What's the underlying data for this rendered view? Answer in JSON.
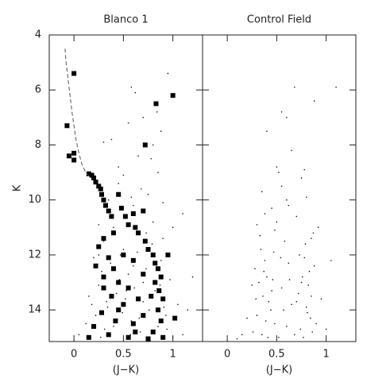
{
  "chart_data": [
    {
      "type": "scatter",
      "title": "Blanco 1",
      "xlabel": "(J−K)",
      "ylabel": "K",
      "xlim": [
        -0.25,
        1.3
      ],
      "ylim": [
        4,
        15.15
      ],
      "y_inverted": true,
      "show_ytick_labels": true,
      "xticks": [
        0,
        0.5,
        1
      ],
      "yticks": [
        4,
        6,
        8,
        10,
        12,
        14
      ],
      "series": [
        {
          "marker": "dot",
          "color": "#111",
          "x": [
            0.05,
            0.12,
            0.18,
            0.22,
            0.25,
            0.28,
            0.31,
            0.34,
            0.37,
            0.4,
            0.43,
            0.46,
            0.49,
            0.52,
            0.55,
            0.58,
            0.61,
            0.64,
            0.67,
            0.7,
            0.73,
            0.76,
            0.79,
            0.82,
            0.85,
            0.88,
            0.91,
            0.94,
            0.97,
            1.0,
            0.2,
            0.3,
            0.4,
            0.5,
            0.6,
            0.7,
            0.8,
            0.9,
            0.15,
            0.27,
            0.36,
            0.47,
            0.57,
            0.66,
            0.77,
            0.87,
            0.33,
            0.53,
            0.73,
            0.93,
            1.05,
            1.1,
            0.6,
            0.45,
            0.25,
            0.68,
            0.78,
            0.38,
            0.58,
            0.84,
            0.55,
            0.85,
            0.65,
            1.1,
            0.45,
            0.75,
            0.95,
            0.3,
            1.0,
            0.9,
            0.62,
            0.5,
            0.8,
            0.7,
            0.35,
            1.2,
            0.25,
            0.58,
            0.88,
            1.15
          ],
          "values": [
            14.9,
            14.5,
            13.8,
            14.2,
            13.1,
            12.6,
            14.7,
            13.9,
            12.3,
            14.6,
            13.4,
            12.9,
            14.1,
            13.6,
            12.7,
            14.4,
            13.2,
            11.9,
            14.8,
            13.7,
            12.5,
            14.0,
            11.6,
            13.3,
            14.6,
            12.2,
            13.9,
            14.7,
            12.9,
            15.0,
            12.1,
            11.5,
            11.0,
            11.8,
            12.4,
            13.0,
            10.8,
            11.4,
            13.5,
            15.0,
            10.6,
            12.0,
            14.9,
            14.3,
            15.1,
            13.1,
            13.7,
            13.3,
            11.2,
            14.2,
            13.8,
            14.9,
            10.2,
            9.4,
            10.9,
            9.6,
            8.5,
            7.8,
            5.9,
            6.8,
            7.2,
            9.0,
            8.4,
            10.5,
            8.8,
            9.8,
            5.4,
            7.9,
            11.0,
            10.1,
            6.1,
            9.1,
            8.0,
            7.0,
            10.0,
            12.8,
            12.0,
            9.9,
            7.5,
            14.0
          ]
        },
        {
          "marker": "square",
          "color": "#000",
          "x": [
            0.0,
            0.72,
            0.83,
            1.0,
            -0.07,
            -0.05,
            0.0,
            0.0,
            0.15,
            0.18,
            0.2,
            0.22,
            0.25,
            0.27,
            0.28,
            0.3,
            0.32,
            0.35,
            0.38,
            0.45,
            0.48,
            0.52,
            0.55,
            0.6,
            0.62,
            0.65,
            0.7,
            0.72,
            0.75,
            0.8,
            0.82,
            0.85,
            0.88,
            0.82,
            0.86,
            0.9,
            0.85,
            0.88,
            0.8,
            0.9,
            0.4,
            0.3,
            0.25,
            0.35,
            0.4,
            0.3,
            0.45,
            0.55,
            0.38,
            0.5,
            0.28,
            0.42,
            0.6,
            0.7,
            0.65,
            0.2,
            0.35,
            0.55,
            0.75,
            0.15,
            1.02,
            0.95,
            0.6,
            0.7,
            0.5,
            0.22,
            0.3,
            0.45,
            0.62,
            0.78
          ],
          "values": [
            5.4,
            8.0,
            6.5,
            6.2,
            7.3,
            8.4,
            8.3,
            8.55,
            9.05,
            9.1,
            9.2,
            9.35,
            9.5,
            9.6,
            9.8,
            10.0,
            10.2,
            10.4,
            10.6,
            9.8,
            10.3,
            10.6,
            10.9,
            10.5,
            11.0,
            11.2,
            10.4,
            11.5,
            11.8,
            12.0,
            12.3,
            12.5,
            12.8,
            13.0,
            13.3,
            13.6,
            14.0,
            14.4,
            14.8,
            15.0,
            11.2,
            11.4,
            11.7,
            12.1,
            12.5,
            12.8,
            13.0,
            13.2,
            13.5,
            13.8,
            14.1,
            14.4,
            14.5,
            14.2,
            13.6,
            14.6,
            14.9,
            15.0,
            15.05,
            15.0,
            14.3,
            12.0,
            12.2,
            12.7,
            12.0,
            12.4,
            13.2,
            14.0,
            14.8,
            13.5
          ]
        },
        {
          "marker": "dashed-line",
          "color": "#555",
          "x": [
            -0.09,
            -0.08,
            -0.06,
            -0.04,
            -0.02,
            0.0,
            0.02,
            0.05,
            0.08,
            0.12,
            0.17
          ],
          "values": [
            4.5,
            5.0,
            5.6,
            6.2,
            6.8,
            7.3,
            7.8,
            8.3,
            8.7,
            9.0,
            9.2
          ]
        }
      ]
    },
    {
      "type": "scatter",
      "title": "Control Field",
      "xlabel": "(J−K)",
      "xlim": [
        -0.25,
        1.3
      ],
      "ylim": [
        4,
        15.15
      ],
      "y_inverted": true,
      "show_ytick_labels": false,
      "xticks": [
        0,
        0.5,
        1
      ],
      "yticks": [
        4,
        6,
        8,
        10,
        12,
        14
      ],
      "series": [
        {
          "marker": "dot",
          "color": "#111",
          "x": [
            0.28,
            0.32,
            0.36,
            0.4,
            0.44,
            0.48,
            0.3,
            0.34,
            0.38,
            0.42,
            0.46,
            0.26,
            0.35,
            0.45,
            0.33,
            0.41,
            0.29,
            0.39,
            0.47,
            0.37,
            0.72,
            0.76,
            0.8,
            0.84,
            0.88,
            0.74,
            0.78,
            0.82,
            0.86,
            0.7,
            0.79,
            0.83,
            0.77,
            0.81,
            0.85,
            0.73,
            0.87,
            0.75,
            0.9,
            0.68,
            0.55,
            0.6,
            0.62,
            0.58,
            0.52,
            0.65,
            0.5,
            0.57,
            0.63,
            0.54,
            0.2,
            0.15,
            0.95,
            1.0,
            1.05,
            0.1,
            0.25,
            0.92,
            0.6,
            0.55,
            0.45,
            0.7,
            0.35,
            0.8,
            0.5,
            0.65,
            0.4,
            0.75,
            0.55,
            0.85,
            0.3,
            0.6,
            0.68,
            0.48,
            0.78,
            0.38,
            0.88,
            0.52,
            0.62,
            1.1
          ],
          "values": [
            12.5,
            13.0,
            13.5,
            12.8,
            14.0,
            14.5,
            14.2,
            11.8,
            12.2,
            13.7,
            12.9,
            14.8,
            14.9,
            13.3,
            11.3,
            15.0,
            13.6,
            14.4,
            11.9,
            12.6,
            13.4,
            12.8,
            13.9,
            14.3,
            12.4,
            14.7,
            12.1,
            13.1,
            14.8,
            13.7,
            11.6,
            12.6,
            15.0,
            14.1,
            13.5,
            12.0,
            11.2,
            13.0,
            14.5,
            14.9,
            13.2,
            14.6,
            12.3,
            11.5,
            15.0,
            13.8,
            10.8,
            14.0,
            12.9,
            12.1,
            14.3,
            14.9,
            13.6,
            14.7,
            12.2,
            15.05,
            13.1,
            11.0,
            10.0,
            9.5,
            10.3,
            10.6,
            9.7,
            9.9,
            8.8,
            8.2,
            7.5,
            9.2,
            6.8,
            11.4,
            10.9,
            7.0,
            5.9,
            11.1,
            8.9,
            10.5,
            6.4,
            9.0,
            10.2,
            5.9
          ]
        }
      ]
    }
  ]
}
